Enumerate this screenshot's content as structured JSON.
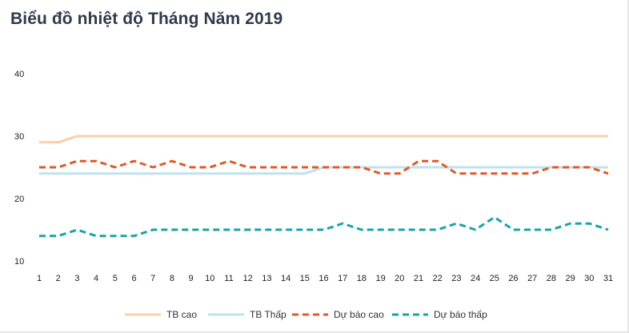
{
  "chart_data": {
    "type": "line",
    "title": "Biểu đồ nhiệt độ Tháng Năm 2019",
    "x": [
      "1",
      "2",
      "3",
      "4",
      "5",
      "6",
      "7",
      "8",
      "9",
      "10",
      "11",
      "12",
      "13",
      "14",
      "15",
      "16",
      "17",
      "18",
      "19",
      "20",
      "21",
      "22",
      "23",
      "24",
      "25",
      "26",
      "27",
      "28",
      "29",
      "30",
      "31"
    ],
    "ylim": [
      10,
      40
    ],
    "yticks": [
      "10",
      "20",
      "30",
      "40"
    ],
    "grid": false,
    "legend_position": "bottom",
    "series": [
      {
        "name": "TB cao",
        "color": "#f8cfab",
        "dashed": false,
        "values": [
          29,
          29,
          30,
          30,
          30,
          30,
          30,
          30,
          30,
          30,
          30,
          30,
          30,
          30,
          30,
          30,
          30,
          30,
          30,
          30,
          30,
          30,
          30,
          30,
          30,
          30,
          30,
          30,
          30,
          30,
          30
        ]
      },
      {
        "name": "TB Thấp",
        "color": "#bfe3ee",
        "dashed": false,
        "values": [
          24,
          24,
          24,
          24,
          24,
          24,
          24,
          24,
          24,
          24,
          24,
          24,
          24,
          24,
          24,
          25,
          25,
          25,
          25,
          25,
          25,
          25,
          25,
          25,
          25,
          25,
          25,
          25,
          25,
          25,
          25
        ]
      },
      {
        "name": "Dự báo cao",
        "color": "#e05a2b",
        "dashed": true,
        "values": [
          25,
          25,
          26,
          26,
          25,
          26,
          25,
          26,
          25,
          25,
          26,
          25,
          25,
          25,
          25,
          25,
          25,
          25,
          24,
          24,
          26,
          26,
          24,
          24,
          24,
          24,
          24,
          25,
          25,
          25,
          24
        ]
      },
      {
        "name": "Dự báo thấp",
        "color": "#17a5a8",
        "dashed": true,
        "values": [
          14,
          14,
          15,
          14,
          14,
          14,
          15,
          15,
          15,
          15,
          15,
          15,
          15,
          15,
          15,
          15,
          16,
          15,
          15,
          15,
          15,
          15,
          16,
          15,
          17,
          15,
          15,
          15,
          16,
          16,
          15
        ]
      }
    ]
  }
}
